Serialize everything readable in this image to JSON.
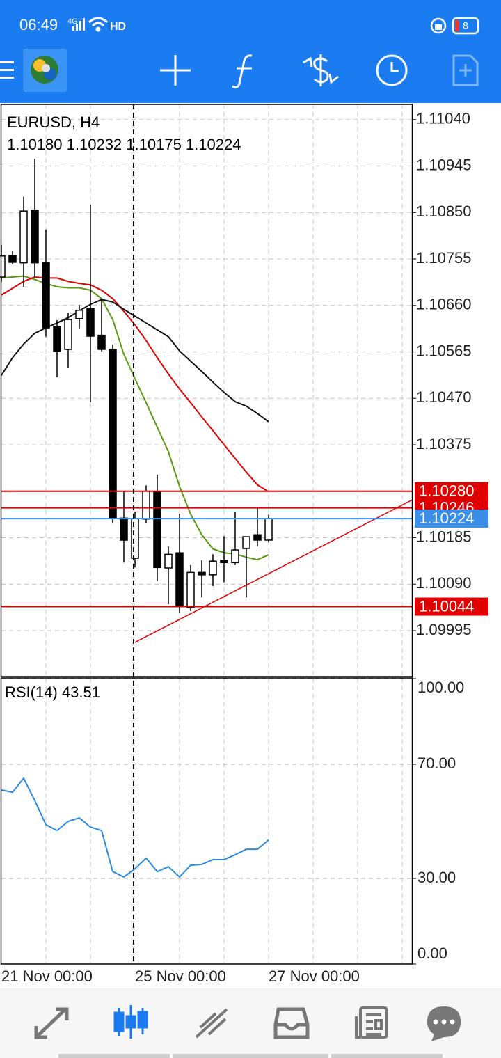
{
  "status_bar": {
    "time": "06:49",
    "network": "4G",
    "hd": "HD",
    "battery": "8"
  },
  "chart_data": {
    "type": "candlestick",
    "symbol": "EURUSD, H4",
    "ohlc": "1.10180 1.10232 1.10175 1.10224",
    "categories": [
      "21 Nov 00:00",
      null,
      null,
      null,
      null,
      null,
      null,
      null,
      null,
      null,
      null,
      null,
      "25 Nov 00:00",
      null,
      null,
      null,
      null,
      null,
      null,
      null,
      null,
      null,
      null,
      null,
      "27 Nov 00:00"
    ],
    "open": [
      1.10718,
      1.10762,
      1.10747,
      1.10855,
      1.10748,
      1.10617,
      1.1057,
      1.10633,
      1.10653,
      1.10599,
      1.1057,
      1.10225,
      1.10143,
      1.10223,
      1.10278,
      1.10123,
      1.10154,
      1.10042,
      1.10114,
      1.10109,
      1.10139,
      1.10134,
      1.10163,
      1.10191,
      1.1018
    ],
    "high": [
      1.10784,
      1.10772,
      1.10882,
      1.1096,
      1.10815,
      1.1063,
      1.10644,
      1.10661,
      1.10866,
      1.10673,
      1.1058,
      1.1028,
      1.10237,
      1.10292,
      1.10314,
      1.10167,
      1.10234,
      1.10129,
      1.10139,
      1.10151,
      1.10188,
      1.10237,
      1.10188,
      1.10245,
      1.10232
    ],
    "low": [
      1.10708,
      1.10744,
      1.10698,
      1.10718,
      1.10596,
      1.10513,
      1.10533,
      1.10613,
      1.10462,
      1.10566,
      1.10214,
      1.10134,
      1.10124,
      1.10214,
      1.10096,
      1.10049,
      1.10032,
      1.10035,
      1.10063,
      1.10086,
      1.10094,
      1.10129,
      1.10063,
      1.10167,
      1.10175
    ],
    "close": [
      1.10761,
      1.10748,
      1.10853,
      1.10747,
      1.10614,
      1.10566,
      1.10631,
      1.1065,
      1.10597,
      1.1057,
      1.10224,
      1.1018,
      1.10224,
      1.1028,
      1.10124,
      1.10151,
      1.10046,
      1.10114,
      1.10109,
      1.10137,
      1.10134,
      1.1016,
      1.10187,
      1.1018,
      1.10224
    ],
    "up_color": "#ffffff",
    "down_color": "#000000",
    "series": [
      {
        "color": "#5a9a10",
        "values": [
          1.10716,
          1.10718,
          1.1072,
          1.10713,
          1.10705,
          1.10698,
          1.10696,
          1.10696,
          1.10691,
          1.10674,
          1.10631,
          1.1056,
          1.1051,
          1.10461,
          1.10411,
          1.10361,
          1.1029,
          1.10233,
          1.10191,
          1.10162,
          1.10154,
          1.10152,
          1.10145,
          1.1014,
          1.1015
        ]
      },
      {
        "color": "#e00000",
        "values": [
          1.10681,
          1.10695,
          1.10709,
          1.10718,
          1.10716,
          1.10716,
          1.10709,
          1.10705,
          1.10702,
          1.10691,
          1.10674,
          1.10648,
          1.1062,
          1.10588,
          1.10553,
          1.1052,
          1.10489,
          1.10461,
          1.10432,
          1.10404,
          1.10375,
          1.10347,
          1.10319,
          1.10293,
          1.10279
        ]
      },
      {
        "color": "#111111",
        "values": [
          1.10517,
          1.10553,
          1.10581,
          1.10603,
          1.10614,
          1.10624,
          1.10635,
          1.10649,
          1.10662,
          1.10672,
          1.10667,
          1.10652,
          1.10638,
          1.10624,
          1.1061,
          1.10596,
          1.10567,
          1.10546,
          1.10525,
          1.10503,
          1.10482,
          1.10463,
          1.10454,
          1.10439,
          1.10422
        ]
      }
    ],
    "price_levels": [
      {
        "value": 1.10246,
        "color": "#e00000"
      },
      {
        "value": 1.1028,
        "label": "1.10280",
        "color": "#e00000"
      },
      {
        "value": 1.10044,
        "color": "#e00000"
      },
      {
        "value": 1.10224,
        "color": "#3a8ee6"
      }
    ],
    "trendline": {
      "x": [
        12,
        36.875
      ],
      "values": [
        1.09971,
        1.10262
      ],
      "color": "#e00000"
    },
    "xlim": [
      0,
      36.875
    ],
    "ylim": [
      1.09901,
      1.11071
    ],
    "yticks": [
      {
        "value": 1.1104,
        "label": "1.11040"
      },
      1.10945,
      {
        "value": 1.1085,
        "label": "1.10850"
      },
      1.10755,
      {
        "value": 1.1066,
        "label": "1.10660"
      },
      1.10565,
      {
        "value": 1.1047,
        "label": "1.10470"
      },
      1.10375,
      1.10185,
      {
        "value": 1.1009,
        "label": "1.10090"
      },
      1.09995
    ],
    "grid": true,
    "rsi": {
      "title": "RSI(14)",
      "color": "#2a8ae0",
      "values": [
        61.0,
        60.2,
        65.1,
        57.3,
        48.8,
        46.8,
        50.0,
        51.2,
        48.0,
        46.8,
        32.4,
        30.5,
        33.4,
        37.1,
        32.4,
        34.1,
        30.5,
        34.6,
        34.9,
        36.6,
        36.6,
        38.3,
        40.2,
        40.2,
        43.51
      ],
      "ylim": [
        0,
        100
      ],
      "yticks": [
        {
          "value": 0,
          "label": "0.00"
        },
        {
          "value": 30,
          "label": "30.00"
        },
        {
          "value": 70,
          "label": "70.00"
        },
        {
          "value": 100,
          "label": "100.00"
        }
      ]
    }
  }
}
